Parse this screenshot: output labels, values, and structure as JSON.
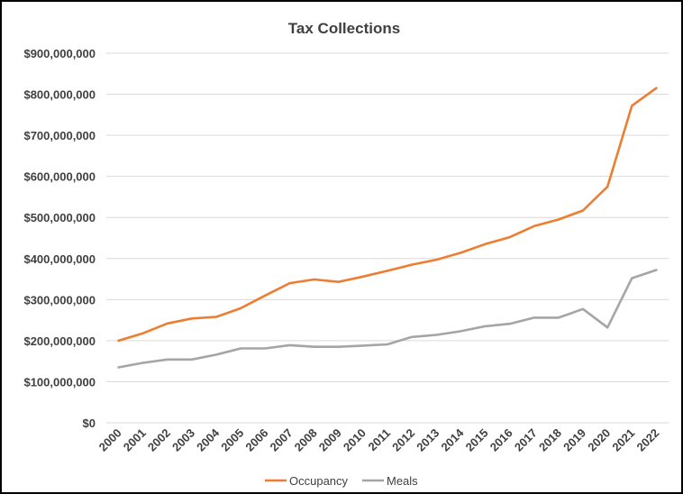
{
  "chart_data": {
    "type": "line",
    "title": "Tax Collections",
    "xlabel": "",
    "ylabel": "",
    "categories": [
      "2000",
      "2001",
      "2002",
      "2003",
      "2004",
      "2005",
      "2006",
      "2007",
      "2008",
      "2009",
      "2010",
      "2011",
      "2012",
      "2013",
      "2014",
      "2015",
      "2016",
      "2017",
      "2018",
      "2019",
      "2020",
      "2021",
      "2022"
    ],
    "series": [
      {
        "name": "Occupancy",
        "color": "#ED7D31",
        "values": [
          200000000,
          218000000,
          242000000,
          254000000,
          258000000,
          279000000,
          310000000,
          340000000,
          349000000,
          343000000,
          356000000,
          370000000,
          385000000,
          397000000,
          414000000,
          435000000,
          452000000,
          479000000,
          495000000,
          517000000,
          575000000,
          772000000,
          815000000
        ]
      },
      {
        "name": "Meals",
        "color": "#A5A5A5",
        "values": [
          135000000,
          146000000,
          154000000,
          154000000,
          166000000,
          181000000,
          181000000,
          189000000,
          185000000,
          185000000,
          188000000,
          191000000,
          209000000,
          214000000,
          223000000,
          235000000,
          241000000,
          256000000,
          256000000,
          277000000,
          232000000,
          352000000,
          372000000
        ]
      }
    ],
    "ylim": [
      0,
      900000000
    ],
    "y_ticks": [
      0,
      100000000,
      200000000,
      300000000,
      400000000,
      500000000,
      600000000,
      700000000,
      800000000,
      900000000
    ],
    "y_tick_labels": [
      "$0",
      "$100,000,000",
      "$200,000,000",
      "$300,000,000",
      "$400,000,000",
      "$500,000,000",
      "$600,000,000",
      "$700,000,000",
      "$800,000,000",
      "$900,000,000"
    ],
    "grid": true,
    "grid_color": "#D9D9D9",
    "legend_position": "bottom"
  }
}
